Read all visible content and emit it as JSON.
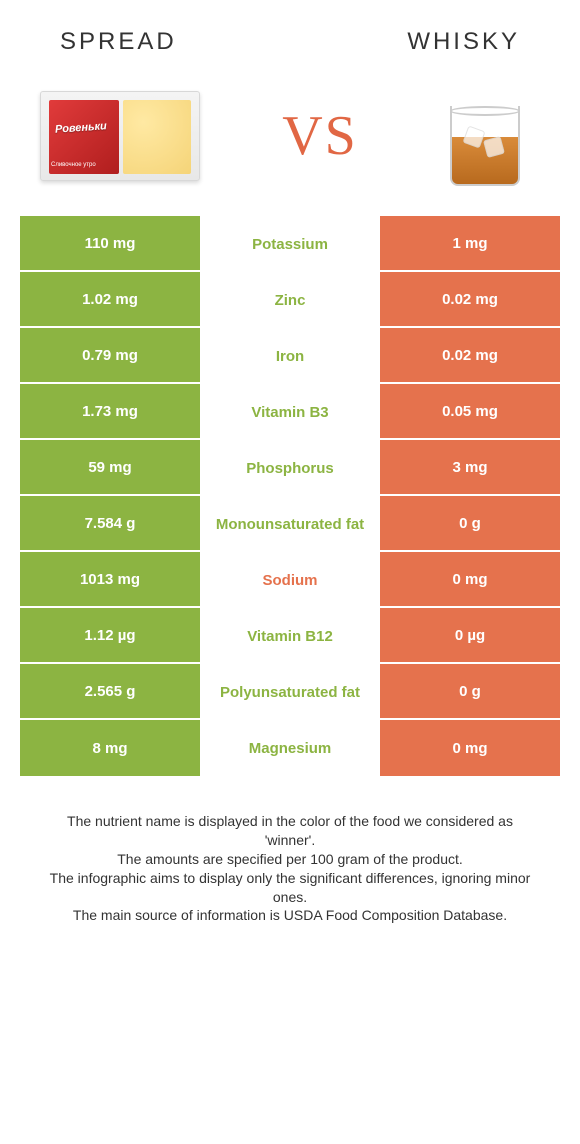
{
  "header": {
    "left": "SPREAD",
    "right": "WHISKY"
  },
  "vs": "VS",
  "brand": "Ровеньки",
  "brand_sub": "Сливочное утро",
  "colors": {
    "left_bg": "#8cb442",
    "right_bg": "#e5724d",
    "mid_green": "#8cb442",
    "mid_orange": "#e5724d",
    "text_white": "#ffffff"
  },
  "rows": [
    {
      "left": "110 mg",
      "mid": "Potassium",
      "right": "1 mg",
      "winner": "left"
    },
    {
      "left": "1.02 mg",
      "mid": "Zinc",
      "right": "0.02 mg",
      "winner": "left"
    },
    {
      "left": "0.79 mg",
      "mid": "Iron",
      "right": "0.02 mg",
      "winner": "left"
    },
    {
      "left": "1.73 mg",
      "mid": "Vitamin B3",
      "right": "0.05 mg",
      "winner": "left"
    },
    {
      "left": "59 mg",
      "mid": "Phosphorus",
      "right": "3 mg",
      "winner": "left"
    },
    {
      "left": "7.584 g",
      "mid": "Monounsaturated fat",
      "right": "0 g",
      "winner": "left"
    },
    {
      "left": "1013 mg",
      "mid": "Sodium",
      "right": "0 mg",
      "winner": "right"
    },
    {
      "left": "1.12 µg",
      "mid": "Vitamin B12",
      "right": "0 µg",
      "winner": "left"
    },
    {
      "left": "2.565 g",
      "mid": "Polyunsaturated fat",
      "right": "0 g",
      "winner": "left"
    },
    {
      "left": "8 mg",
      "mid": "Magnesium",
      "right": "0 mg",
      "winner": "left"
    }
  ],
  "footnotes": [
    "The nutrient name is displayed in the color of the food we considered as 'winner'.",
    "The amounts are specified per 100 gram of the product.",
    "The infographic aims to display only the significant differences, ignoring minor ones.",
    "The main source of information is USDA Food Composition Database."
  ]
}
